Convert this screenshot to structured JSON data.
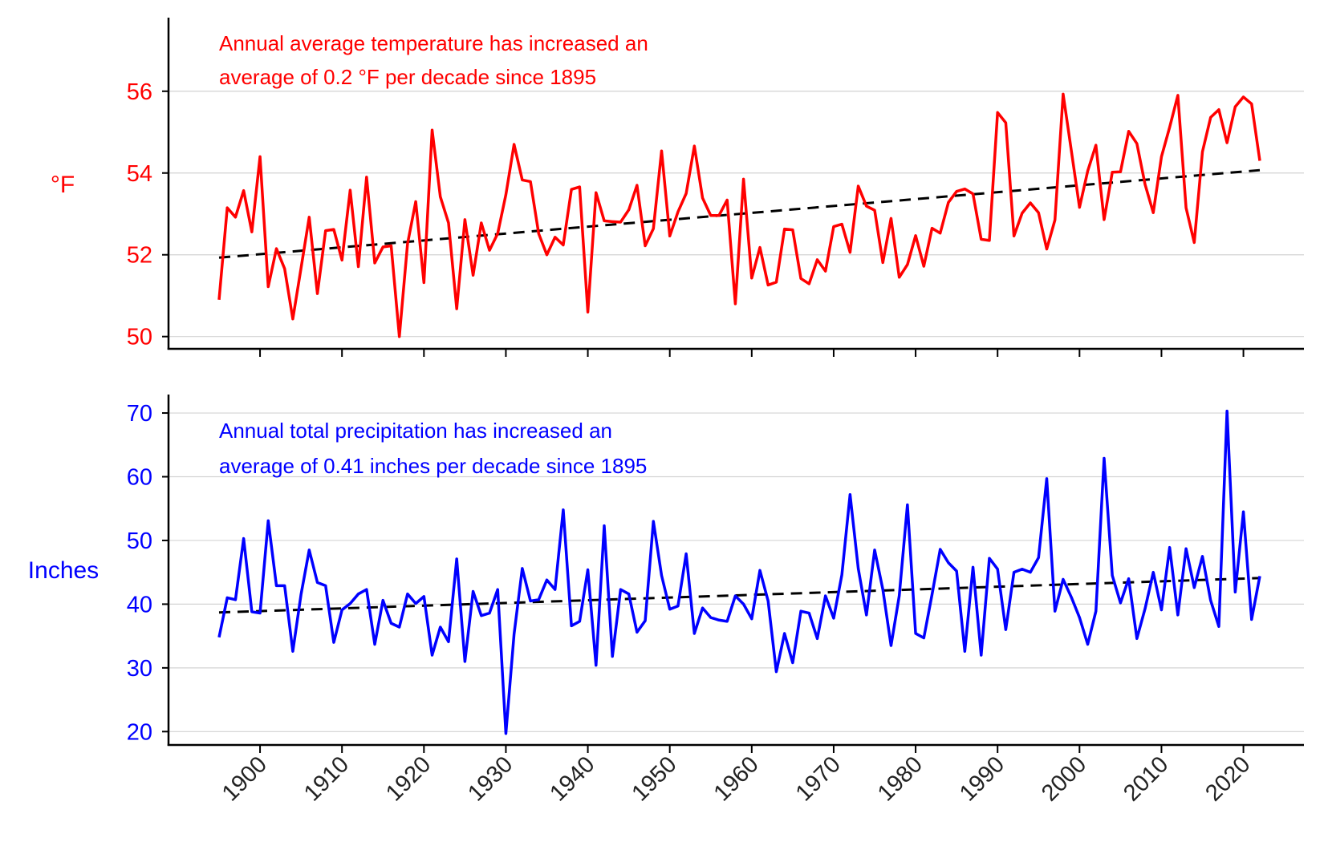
{
  "chart_data": [
    {
      "type": "line",
      "title": "",
      "ylabel": "°F",
      "xlim": [
        1895,
        2022
      ],
      "ylim": [
        49.7,
        57.8
      ],
      "yticks": [
        50,
        52,
        54,
        56
      ],
      "color": "#ff0000",
      "annotation": [
        "Annual average temperature has increased an",
        "average of 0.2 °F per decade since 1895"
      ],
      "trend": {
        "style": "dashed",
        "color": "#000000",
        "x": [
          1895,
          2022
        ],
        "y": [
          51.93,
          54.07
        ]
      },
      "series": [
        {
          "name": "Annual average temperature",
          "x_start": 1895,
          "values": [
            50.9,
            53.15,
            52.92,
            53.57,
            52.56,
            54.4,
            51.22,
            52.15,
            51.66,
            50.43,
            51.67,
            52.92,
            51.05,
            52.59,
            52.62,
            51.87,
            53.58,
            51.71,
            53.9,
            51.8,
            52.19,
            52.22,
            50.0,
            52.27,
            53.3,
            51.32,
            55.05,
            53.42,
            52.78,
            50.68,
            52.86,
            51.5,
            52.78,
            52.11,
            52.52,
            53.47,
            54.7,
            53.83,
            53.79,
            52.52,
            52.0,
            52.43,
            52.24,
            53.6,
            53.66,
            50.6,
            53.52,
            52.83,
            52.81,
            52.8,
            53.1,
            53.7,
            52.22,
            52.64,
            54.54,
            52.46,
            53.05,
            53.5,
            54.66,
            53.39,
            52.96,
            52.96,
            53.34,
            50.8,
            53.85,
            51.43,
            52.18,
            51.26,
            51.33,
            52.63,
            52.61,
            51.42,
            51.29,
            51.88,
            51.6,
            52.69,
            52.75,
            52.06,
            53.68,
            53.19,
            53.09,
            51.81,
            52.89,
            51.45,
            51.76,
            52.47,
            51.72,
            52.65,
            52.53,
            53.28,
            53.55,
            53.61,
            53.49,
            52.38,
            52.35,
            55.48,
            55.23,
            52.46,
            53.02,
            53.27,
            53.03,
            52.14,
            52.85,
            55.93,
            54.55,
            53.16,
            54.05,
            54.68,
            52.86,
            54.02,
            54.03,
            55.02,
            54.72,
            53.72,
            53.03,
            54.4,
            55.12,
            55.9,
            53.15,
            52.3,
            54.52,
            55.36,
            55.55,
            54.74,
            55.62,
            55.86,
            55.69,
            54.3
          ]
        }
      ]
    },
    {
      "type": "line",
      "title": "",
      "ylabel": "Inches",
      "xlim": [
        1895,
        2022
      ],
      "ylim": [
        17.9,
        72.9
      ],
      "yticks": [
        20,
        30,
        40,
        50,
        60,
        70
      ],
      "color": "#0000ff",
      "annotation": [
        "Annual total precipitation has increased an",
        "average of 0.41 inches per decade since 1895"
      ],
      "trend": {
        "style": "dashed",
        "color": "#000000",
        "x": [
          1895,
          2022
        ],
        "y": [
          38.7,
          44.1
        ]
      },
      "series": [
        {
          "name": "Annual total precipitation",
          "x_start": 1895,
          "values": [
            34.8,
            41.0,
            40.7,
            50.3,
            38.8,
            38.6,
            53.1,
            42.9,
            42.9,
            32.6,
            41.5,
            48.5,
            43.4,
            42.9,
            34.0,
            39.1,
            40.1,
            41.6,
            42.3,
            33.7,
            40.6,
            37.0,
            36.4,
            41.6,
            40.1,
            41.2,
            32.0,
            36.4,
            34.1,
            47.1,
            31.0,
            42.0,
            38.2,
            38.6,
            42.3,
            19.7,
            35.3,
            45.6,
            40.5,
            40.7,
            43.8,
            42.3,
            54.8,
            36.6,
            37.3,
            45.4,
            30.4,
            52.3,
            31.8,
            42.3,
            41.6,
            35.6,
            37.4,
            53.0,
            44.5,
            39.2,
            39.7,
            47.9,
            35.4,
            39.4,
            37.9,
            37.5,
            37.3,
            41.3,
            40.0,
            37.7,
            45.3,
            40.5,
            29.4,
            35.4,
            30.8,
            38.9,
            38.6,
            34.6,
            41.3,
            37.8,
            44.6,
            57.2,
            45.6,
            38.3,
            48.5,
            42.3,
            33.5,
            41.3,
            55.6,
            35.4,
            34.7,
            41.5,
            48.6,
            46.5,
            45.2,
            32.6,
            45.8,
            32.0,
            47.2,
            45.5,
            36.0,
            45.0,
            45.5,
            45.0,
            47.3,
            59.7,
            38.9,
            43.9,
            41.1,
            37.9,
            33.7,
            38.9,
            62.9,
            44.5,
            40.2,
            44.0,
            34.6,
            39.3,
            45.0,
            39.1,
            48.9,
            38.3,
            48.7,
            42.6,
            47.5,
            40.6,
            36.5,
            70.3,
            41.9,
            54.5,
            37.6,
            44.4
          ]
        }
      ]
    }
  ],
  "x_ticks": [
    1900,
    1910,
    1920,
    1930,
    1940,
    1950,
    1960,
    1970,
    1980,
    1990,
    2000,
    2010,
    2020
  ]
}
